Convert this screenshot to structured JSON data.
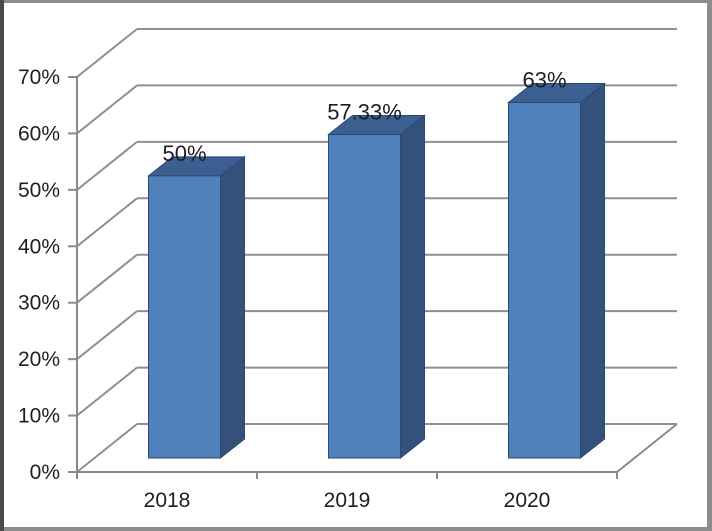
{
  "chart_data": {
    "type": "bar",
    "subtype": "3d-column",
    "title": "",
    "xlabel": "",
    "ylabel": "",
    "categories": [
      "2018",
      "2019",
      "2020"
    ],
    "values": [
      50,
      57.33,
      63
    ],
    "data_labels": [
      "50%",
      "57.33%",
      "63%"
    ],
    "y_tick_labels": [
      "0%",
      "10%",
      "20%",
      "30%",
      "40%",
      "50%",
      "60%",
      "70%"
    ],
    "ylim": [
      0,
      70
    ],
    "y_step": 10,
    "grid": true,
    "legend": "none",
    "colors": {
      "bar_front": "#4f81bd",
      "bar_top": "#3a5f90",
      "bar_side": "#33517a",
      "bar_edge": "#2a4a70",
      "gridline": "#8f8f8f",
      "axis": "#8a8a8a",
      "text": "#1f1f1f",
      "frame_gray": "#8c8c8c",
      "frame_dark": "#4a4a4a",
      "background": "#ffffff"
    }
  }
}
